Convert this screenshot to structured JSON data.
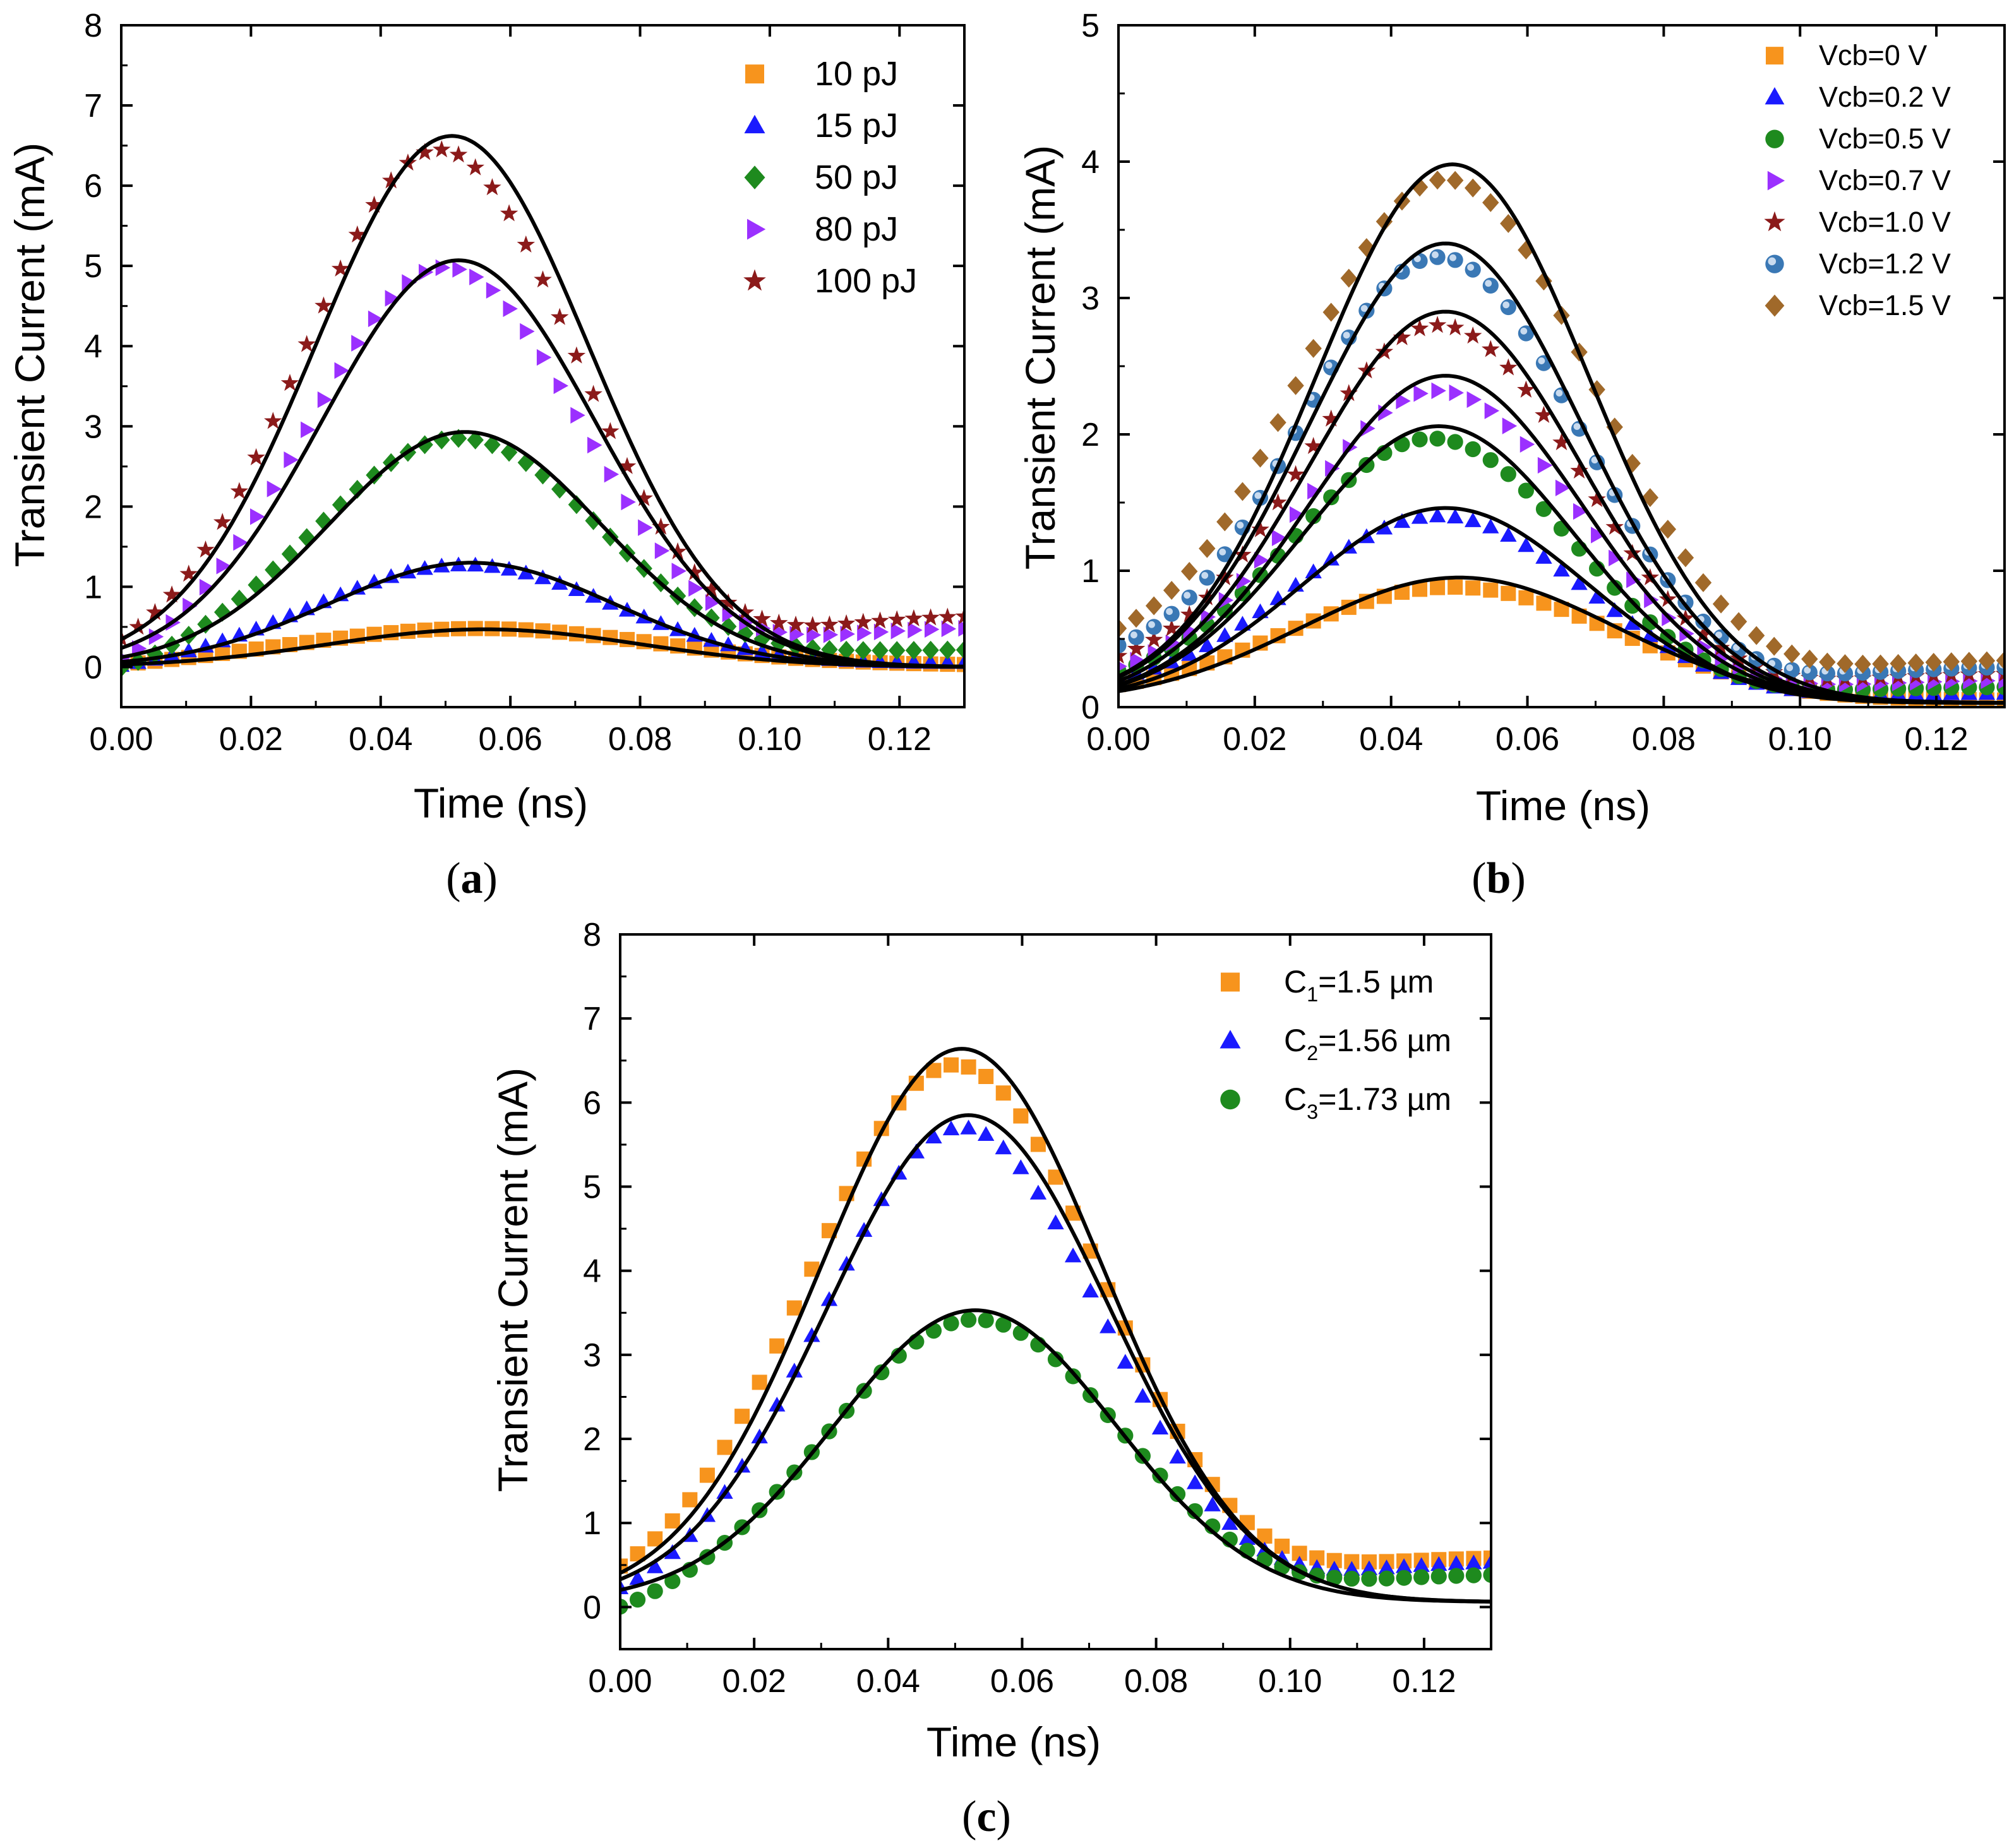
{
  "chart_data": [
    {
      "id": "a",
      "type": "scatter",
      "panel_label_pre": "(",
      "panel_label_letter": "a",
      "panel_label_post": ")",
      "xlabel": "Time (ns)",
      "ylabel": "Transient Current (mA)",
      "xlim": [
        0,
        0.13
      ],
      "ylim": [
        -0.5,
        8
      ],
      "xticks": [
        0,
        0.02,
        0.04,
        0.06,
        0.08,
        0.1,
        0.12
      ],
      "xtick_labels": [
        "0.00",
        "0.02",
        "0.04",
        "0.06",
        "0.08",
        "0.10",
        "0.12"
      ],
      "yticks": [
        0,
        1,
        2,
        3,
        4,
        5,
        6,
        7,
        8
      ],
      "ytick_labels": [
        "0",
        "1",
        "2",
        "3",
        "4",
        "5",
        "6",
        "7",
        "8"
      ],
      "legend_position": "top-right",
      "fit_color": "#000000",
      "series": [
        {
          "name": "10 pJ",
          "marker": "square",
          "color": "#f7941d",
          "peak": 0.48,
          "tpeak": 0.055,
          "sigma": 0.028,
          "v0": -0.05,
          "tail": 0.02
        },
        {
          "name": "15 pJ",
          "marker": "triangle-up",
          "color": "#1a1aff",
          "peak": 1.27,
          "tpeak": 0.053,
          "sigma": 0.023,
          "v0": -0.1,
          "tail": 0.05
        },
        {
          "name": "50 pJ",
          "marker": "diamond",
          "color": "#1e8a1e",
          "peak": 2.85,
          "tpeak": 0.052,
          "sigma": 0.022,
          "v0": -0.25,
          "tail": 0.22
        },
        {
          "name": "80 pJ",
          "marker": "triangle-right",
          "color": "#9b30ff",
          "peak": 4.98,
          "tpeak": 0.05,
          "sigma": 0.021,
          "v0": -0.25,
          "tail": 0.5
        },
        {
          "name": "100 pJ",
          "marker": "star",
          "color": "#8b1a1a",
          "peak": 6.45,
          "tpeak": 0.049,
          "sigma": 0.021,
          "v0": -0.1,
          "tail": 0.65
        }
      ],
      "fits": [
        {
          "peak": 0.47,
          "tpeak": 0.056,
          "sigma": 0.024,
          "base": 0.0
        },
        {
          "peak": 1.3,
          "tpeak": 0.054,
          "sigma": 0.022,
          "base": 0.0
        },
        {
          "peak": 2.93,
          "tpeak": 0.053,
          "sigma": 0.021,
          "base": 0.0
        },
        {
          "peak": 5.07,
          "tpeak": 0.052,
          "sigma": 0.021,
          "base": 0.0
        },
        {
          "peak": 6.62,
          "tpeak": 0.051,
          "sigma": 0.021,
          "base": 0.0
        }
      ]
    },
    {
      "id": "b",
      "type": "scatter",
      "panel_label_pre": "(",
      "panel_label_letter": "b",
      "panel_label_post": ")",
      "xlabel": "Time (ns)",
      "ylabel": "Transient Current (mA)",
      "xlim": [
        0,
        0.13
      ],
      "ylim": [
        0,
        5
      ],
      "xticks": [
        0,
        0.02,
        0.04,
        0.06,
        0.08,
        0.1,
        0.12
      ],
      "xtick_labels": [
        "0.00",
        "0.02",
        "0.04",
        "0.06",
        "0.08",
        "0.10",
        "0.12"
      ],
      "yticks": [
        0,
        1,
        2,
        3,
        4,
        5
      ],
      "ytick_labels": [
        "0",
        "1",
        "2",
        "3",
        "4",
        "5"
      ],
      "legend_position": "top-right",
      "fit_color": "#000000",
      "series": [
        {
          "name": "Vcb=0 V",
          "marker": "square",
          "color": "#f7941d",
          "peak": 0.88,
          "tpeak": 0.049,
          "sigma": 0.025,
          "v0": 0.05,
          "tail": 0.05
        },
        {
          "name": "Vcb=0.2 V",
          "marker": "triangle-up",
          "color": "#1a1aff",
          "peak": 1.4,
          "tpeak": 0.047,
          "sigma": 0.022,
          "v0": 0.1,
          "tail": 0.1
        },
        {
          "name": "Vcb=0.5 V",
          "marker": "circle",
          "color": "#1e8a1e",
          "peak": 1.97,
          "tpeak": 0.046,
          "sigma": 0.021,
          "v0": 0.12,
          "tail": 0.15
        },
        {
          "name": "Vcb=0.7 V",
          "marker": "triangle-right",
          "color": "#9b30ff",
          "peak": 2.32,
          "tpeak": 0.047,
          "sigma": 0.021,
          "v0": 0.15,
          "tail": 0.2
        },
        {
          "name": "Vcb=1.0 V",
          "marker": "star",
          "color": "#8b1a1a",
          "peak": 2.8,
          "tpeak": 0.047,
          "sigma": 0.021,
          "v0": 0.2,
          "tail": 0.25
        },
        {
          "name": "Vcb=1.2 V",
          "marker": "sphere",
          "color": "#3a78b5",
          "peak": 3.3,
          "tpeak": 0.047,
          "sigma": 0.021,
          "v0": 0.25,
          "tail": 0.3
        },
        {
          "name": "Vcb=1.5 V",
          "marker": "diamond",
          "color": "#a0692a",
          "peak": 3.87,
          "tpeak": 0.048,
          "sigma": 0.022,
          "v0": 0.3,
          "tail": 0.35
        }
      ],
      "fits": [
        {
          "peak": 0.92,
          "tpeak": 0.05,
          "sigma": 0.023,
          "base": 0.03
        },
        {
          "peak": 1.43,
          "tpeak": 0.048,
          "sigma": 0.021,
          "base": 0.03
        },
        {
          "peak": 2.03,
          "tpeak": 0.047,
          "sigma": 0.02,
          "base": 0.03
        },
        {
          "peak": 2.4,
          "tpeak": 0.048,
          "sigma": 0.02,
          "base": 0.03
        },
        {
          "peak": 2.87,
          "tpeak": 0.048,
          "sigma": 0.02,
          "base": 0.03
        },
        {
          "peak": 3.37,
          "tpeak": 0.048,
          "sigma": 0.02,
          "base": 0.03
        },
        {
          "peak": 3.95,
          "tpeak": 0.049,
          "sigma": 0.02,
          "base": 0.03
        }
      ]
    },
    {
      "id": "c",
      "type": "scatter",
      "panel_label_pre": "(",
      "panel_label_letter": "c",
      "panel_label_post": ")",
      "xlabel": "Time (ns)",
      "ylabel": "Transient Current (mA)",
      "xlim": [
        0,
        0.13
      ],
      "ylim": [
        -0.5,
        8
      ],
      "xticks": [
        0,
        0.02,
        0.04,
        0.06,
        0.08,
        0.1,
        0.12
      ],
      "xtick_labels": [
        "0.00",
        "0.02",
        "0.04",
        "0.06",
        "0.08",
        "0.10",
        "0.12"
      ],
      "yticks": [
        0,
        1,
        2,
        3,
        4,
        5,
        6,
        7,
        8
      ],
      "ytick_labels": [
        "0",
        "1",
        "2",
        "3",
        "4",
        "5",
        "6",
        "7",
        "8"
      ],
      "legend_position": "top-right",
      "fit_color": "#000000",
      "series": [
        {
          "name": "C1=1.5 µm",
          "label_main": "C",
          "label_sub": "1",
          "label_rest": "=1.5 µm",
          "marker": "square",
          "color": "#f7941d",
          "peak": 6.45,
          "tpeak": 0.05,
          "sigma": 0.022,
          "v0": 0.0,
          "tail": 0.6
        },
        {
          "name": "C2=1.56 µm",
          "label_main": "C",
          "label_sub": "2",
          "label_rest": "=1.56 µm",
          "marker": "triangle-up",
          "color": "#1a1aff",
          "peak": 5.7,
          "tpeak": 0.051,
          "sigma": 0.021,
          "v0": -0.1,
          "tail": 0.55
        },
        {
          "name": "C3=1.73 µm",
          "label_main": "C",
          "label_sub": "3",
          "label_rest": "=1.73 µm",
          "marker": "circle",
          "color": "#1e8a1e",
          "peak": 3.42,
          "tpeak": 0.053,
          "sigma": 0.022,
          "v0": -0.25,
          "tail": 0.4
        }
      ],
      "fits": [
        {
          "peak": 6.58,
          "tpeak": 0.051,
          "sigma": 0.021,
          "base": 0.06
        },
        {
          "peak": 5.79,
          "tpeak": 0.052,
          "sigma": 0.021,
          "base": 0.06
        },
        {
          "peak": 3.47,
          "tpeak": 0.053,
          "sigma": 0.021,
          "base": 0.06
        }
      ]
    }
  ]
}
